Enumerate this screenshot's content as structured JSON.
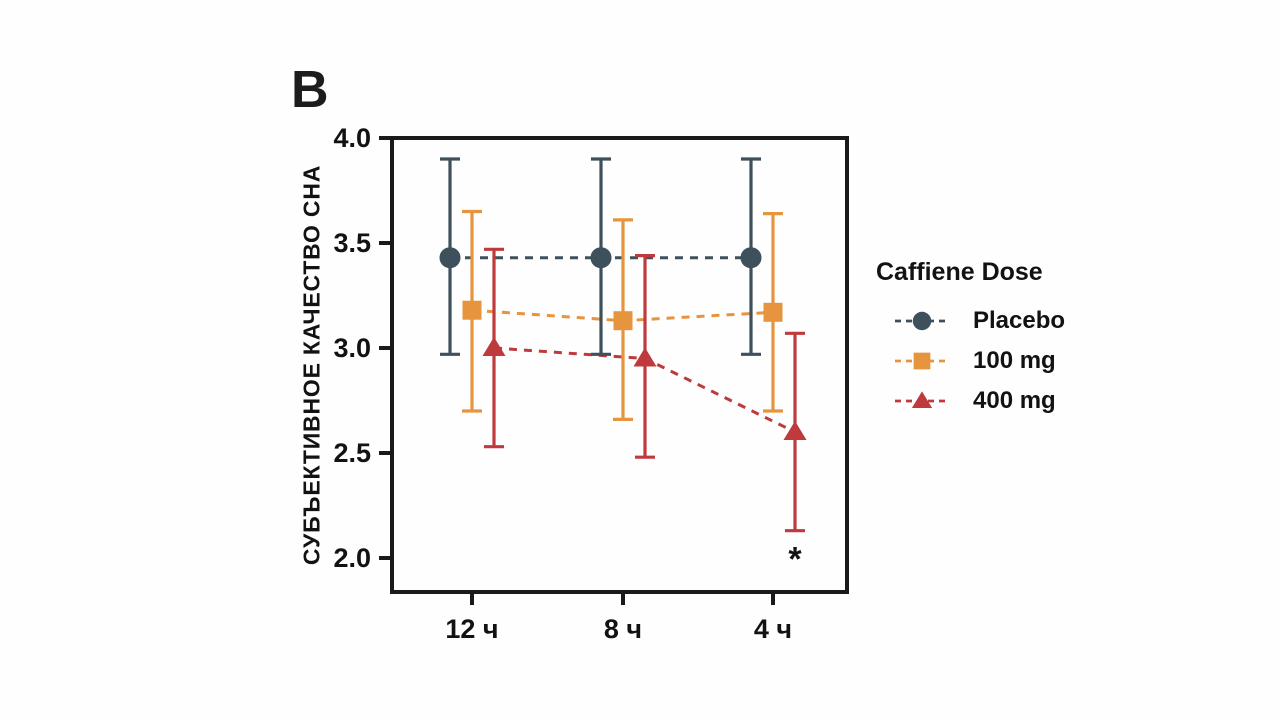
{
  "panel_label": "B",
  "chart_data": {
    "type": "line",
    "title": "",
    "xlabel": "",
    "ylabel": "СУБЪЕКТИВНОЕ КАЧЕСТВО СНА",
    "categories": [
      "12 ч",
      "8 ч",
      "4 ч"
    ],
    "y_ticks": [
      "4.0",
      "3.5",
      "3.0",
      "2.5",
      "2.0"
    ],
    "ylim": [
      1.8,
      4.0
    ],
    "grid": false,
    "axis_color": "#1a1a1a",
    "legend": {
      "title": "Caffiene Dose",
      "position": "right"
    },
    "series": [
      {
        "name": "Placebo",
        "color": "#3E505C",
        "marker": "circle",
        "line_style": "dashed",
        "values": [
          3.43,
          3.43,
          3.43
        ],
        "ci_low": [
          2.97,
          2.97,
          2.97
        ],
        "ci_high": [
          3.9,
          3.9,
          3.9
        ]
      },
      {
        "name": "100 mg",
        "color": "#E6943E",
        "marker": "square",
        "line_style": "dashed",
        "values": [
          3.18,
          3.13,
          3.17
        ],
        "ci_low": [
          2.7,
          2.66,
          2.7
        ],
        "ci_high": [
          3.65,
          3.61,
          3.64
        ]
      },
      {
        "name": "400 mg",
        "color": "#BE3A3C",
        "marker": "triangle",
        "line_style": "dashed",
        "values": [
          3.0,
          2.95,
          2.6
        ],
        "ci_low": [
          2.53,
          2.48,
          2.13
        ],
        "ci_high": [
          3.47,
          3.44,
          3.07
        ]
      }
    ],
    "annotation": {
      "text": "*",
      "category_index": 2,
      "series_index": 2
    }
  }
}
